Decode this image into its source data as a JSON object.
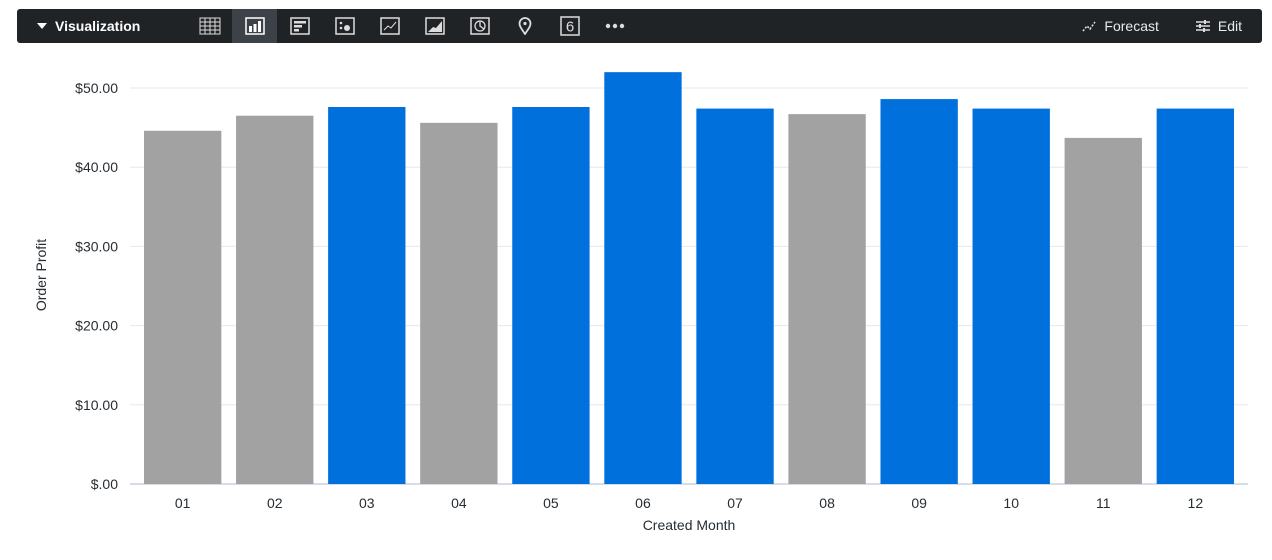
{
  "toolbar": {
    "title": "Visualization",
    "icons": [
      "table-icon",
      "column-chart-icon",
      "bar-chart-icon",
      "scatter-icon",
      "line-chart-icon",
      "area-chart-icon",
      "pie-chart-icon",
      "map-pin-icon",
      "single-value-icon",
      "more-icon"
    ],
    "single_value_glyph": "6",
    "forecast_label": "Forecast",
    "edit_label": "Edit"
  },
  "chart_data": {
    "type": "bar",
    "title": "",
    "xlabel": "Created Month",
    "ylabel": "Order Profit",
    "categories": [
      "01",
      "02",
      "03",
      "04",
      "05",
      "06",
      "07",
      "08",
      "09",
      "10",
      "11",
      "12"
    ],
    "values": [
      44.6,
      46.5,
      47.6,
      45.6,
      47.6,
      52.0,
      47.4,
      46.7,
      48.6,
      47.4,
      43.7,
      47.4
    ],
    "highlighted": [
      false,
      false,
      true,
      false,
      true,
      true,
      true,
      false,
      true,
      true,
      false,
      true
    ],
    "colors": {
      "highlight": "#0070dd",
      "default": "#a2a2a2"
    },
    "ylim": [
      0,
      50
    ],
    "yticks": [
      0,
      10,
      20,
      30,
      40,
      50
    ],
    "ytick_labels": [
      "$.00",
      "$10.00",
      "$20.00",
      "$30.00",
      "$40.00",
      "$50.00"
    ],
    "grid": true,
    "legend": "none"
  }
}
